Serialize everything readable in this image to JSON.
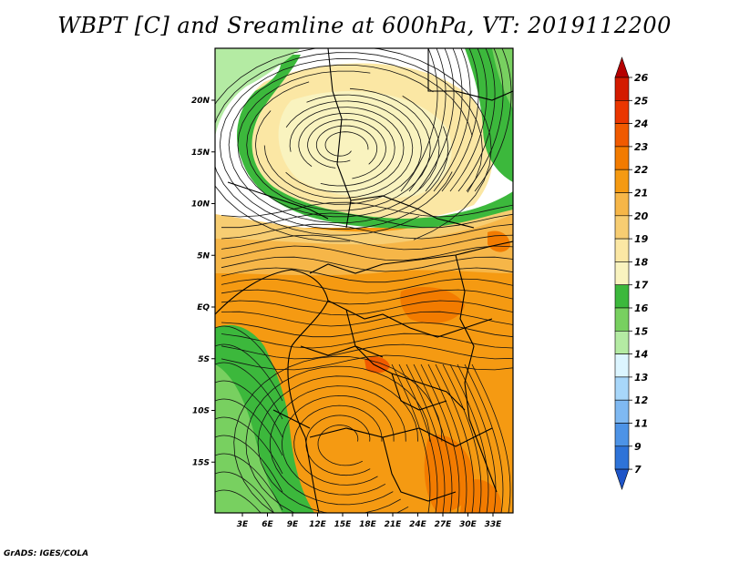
{
  "title": "WBPT [C] and Sreamline at 600hPa, VT: 2019112200",
  "footer": "GrADS: IGES/COLA",
  "map": {
    "lat_labels": [
      {
        "text": "20N",
        "lat": 20
      },
      {
        "text": "15N",
        "lat": 15
      },
      {
        "text": "10N",
        "lat": 10
      },
      {
        "text": "5N",
        "lat": 5
      },
      {
        "text": "EQ",
        "lat": 0
      },
      {
        "text": "5S",
        "lat": -5
      },
      {
        "text": "10S",
        "lat": -10
      },
      {
        "text": "15S",
        "lat": -15
      }
    ],
    "lon_labels": [
      {
        "text": "3E",
        "lon": 3
      },
      {
        "text": "6E",
        "lon": 6
      },
      {
        "text": "9E",
        "lon": 9
      },
      {
        "text": "12E",
        "lon": 12
      },
      {
        "text": "15E",
        "lon": 15
      },
      {
        "text": "18E",
        "lon": 18
      },
      {
        "text": "21E",
        "lon": 21
      },
      {
        "text": "24E",
        "lon": 24
      },
      {
        "text": "27E",
        "lon": 27
      },
      {
        "text": "30E",
        "lon": 30
      },
      {
        "text": "33E",
        "lon": 33
      }
    ]
  },
  "colorbar": {
    "levels": [
      "26",
      "25",
      "24",
      "23",
      "22",
      "21",
      "20",
      "19",
      "18",
      "17",
      "16",
      "15",
      "14",
      "13",
      "12",
      "11",
      "9",
      "7"
    ],
    "colors": [
      "#b50000",
      "#d31b00",
      "#ea3600",
      "#f05a00",
      "#f27b00",
      "#f59a12",
      "#f6b648",
      "#f7cd72",
      "#fbe7a4",
      "#f9f3bf",
      "#3cb83c",
      "#78d060",
      "#b4eba3",
      "#dcf5ff",
      "#a8d7fa",
      "#7fb9f2",
      "#4d93e6",
      "#2e73d8",
      "#1f55c8"
    ]
  },
  "field_colors": {
    "green_dark": "#3cb83c",
    "green_mid": "#78d060",
    "green_light": "#b4eba3",
    "cream": "#f9f3bf",
    "light_yellow": "#fbe7a4",
    "tan": "#f7cd72",
    "light_orange": "#f6b648",
    "orange": "#f59a12",
    "deep_orange": "#f27b00",
    "red_orange": "#f05a00"
  }
}
